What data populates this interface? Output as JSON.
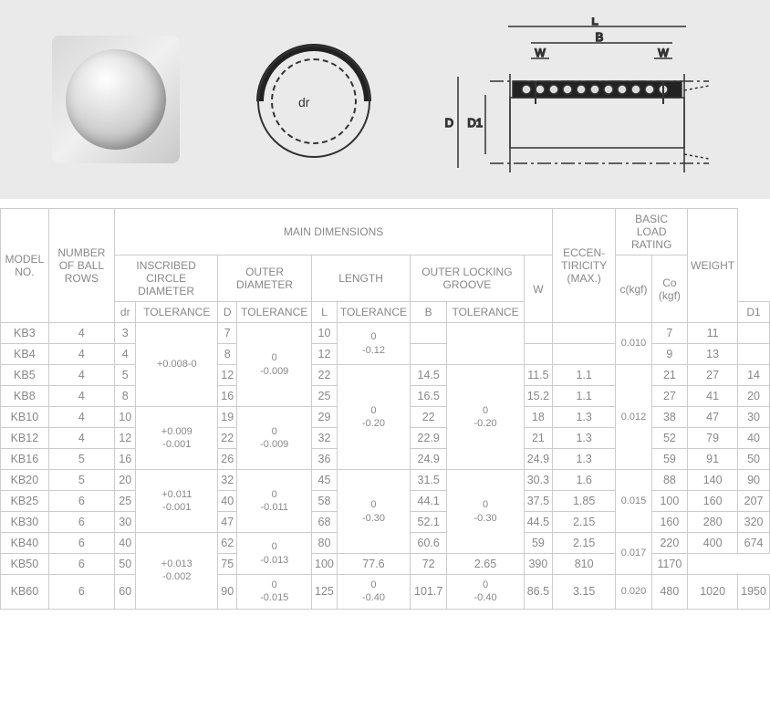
{
  "diagram": {
    "dr_label": "dr",
    "dims": [
      "L",
      "B",
      "W",
      "W",
      "D",
      "D1"
    ]
  },
  "headers": {
    "model": "MODEL NO.",
    "rows": "NUMBER OF BALL ROWS",
    "main": "MAIN DIMENSIONS",
    "icd": "INSCRIBED CIRCLE DIAMETER",
    "od": "OUTER DIAMETER",
    "len": "LENGTH",
    "olg": "OUTER LOCKING GROOVE",
    "dr": "dr",
    "tol": "TOLERANCE",
    "D": "D",
    "L": "L",
    "B": "B",
    "D1": "D1",
    "W": "W",
    "ecc": "ECCEN-TIRICITY (MAX.)",
    "blr": "BASIC LOAD RATING",
    "c": "c(kgf)",
    "co": "Co (kgf)",
    "weight": "WEIGHT"
  },
  "tol_vals": {
    "icd1": "+0.008-0",
    "icd2": "+0.009\n-0.001",
    "icd3": "+0.011\n-0.001",
    "icd4": "+0.013\n-0.002",
    "od1": "0\n-0.009",
    "od2": "0\n-0.009",
    "od3": "0\n-0.011",
    "od4": "0\n-0.013",
    "od5": "0\n-0.015",
    "len1": "0\n-0.12",
    "len2": "0\n-0.20",
    "len3": "0\n-0.30",
    "len4": "0\n-0.40",
    "olg1": "0\n-0.20",
    "olg2": "0\n-0.30",
    "olg3": "0\n-0.40",
    "ecc1": "0.010",
    "ecc2": "0.012",
    "ecc3": "0.015",
    "ecc4": "0.017",
    "ecc5": "0.020"
  },
  "rows": [
    {
      "m": "KB3",
      "br": "4",
      "dr": "3",
      "D": "7",
      "L": "10",
      "B": "",
      "D1": "",
      "W": "",
      "c": "7",
      "co": "11",
      "wt": ""
    },
    {
      "m": "KB4",
      "br": "4",
      "dr": "4",
      "D": "8",
      "L": "12",
      "B": "",
      "D1": "",
      "W": "",
      "c": "9",
      "co": "13",
      "wt": ""
    },
    {
      "m": "KB5",
      "br": "4",
      "dr": "5",
      "D": "12",
      "L": "22",
      "B": "14.5",
      "D1": "11.5",
      "W": "1.1",
      "c": "21",
      "co": "27",
      "wt": "14"
    },
    {
      "m": "KB8",
      "br": "4",
      "dr": "8",
      "D": "16",
      "L": "25",
      "B": "16.5",
      "D1": "15.2",
      "W": "1.1",
      "c": "27",
      "co": "41",
      "wt": "20"
    },
    {
      "m": "KB10",
      "br": "4",
      "dr": "10",
      "D": "19",
      "L": "29",
      "B": "22",
      "D1": "18",
      "W": "1.3",
      "c": "38",
      "co": "47",
      "wt": "30"
    },
    {
      "m": "KB12",
      "br": "4",
      "dr": "12",
      "D": "22",
      "L": "32",
      "B": "22.9",
      "D1": "21",
      "W": "1.3",
      "c": "52",
      "co": "79",
      "wt": "40"
    },
    {
      "m": "KB16",
      "br": "5",
      "dr": "16",
      "D": "26",
      "L": "36",
      "B": "24.9",
      "D1": "24.9",
      "W": "1.3",
      "c": "59",
      "co": "91",
      "wt": "50"
    },
    {
      "m": "KB20",
      "br": "5",
      "dr": "20",
      "D": "32",
      "L": "45",
      "B": "31.5",
      "D1": "30.3",
      "W": "1.6",
      "c": "88",
      "co": "140",
      "wt": "90"
    },
    {
      "m": "KB25",
      "br": "6",
      "dr": "25",
      "D": "40",
      "L": "58",
      "B": "44.1",
      "D1": "37.5",
      "W": "1.85",
      "c": "100",
      "co": "160",
      "wt": "207"
    },
    {
      "m": "KB30",
      "br": "6",
      "dr": "30",
      "D": "47",
      "L": "68",
      "B": "52.1",
      "D1": "44.5",
      "W": "2.15",
      "c": "160",
      "co": "280",
      "wt": "320"
    },
    {
      "m": "KB40",
      "br": "6",
      "dr": "40",
      "D": "62",
      "L": "80",
      "B": "60.6",
      "D1": "59",
      "W": "2.15",
      "c": "220",
      "co": "400",
      "wt": "674"
    },
    {
      "m": "KB50",
      "br": "6",
      "dr": "50",
      "D": "75",
      "L": "100",
      "B": "77.6",
      "D1": "72",
      "W": "2.65",
      "c": "390",
      "co": "810",
      "wt": "1170"
    },
    {
      "m": "KB60",
      "br": "6",
      "dr": "60",
      "D": "90",
      "L": "125",
      "B": "101.7",
      "D1": "86.5",
      "W": "3.15",
      "c": "480",
      "co": "1020",
      "wt": "1950"
    }
  ],
  "colors": {
    "border": "#cccccc",
    "text": "#888888",
    "diagram_bg": "#eaeaea",
    "line": "#333333"
  }
}
